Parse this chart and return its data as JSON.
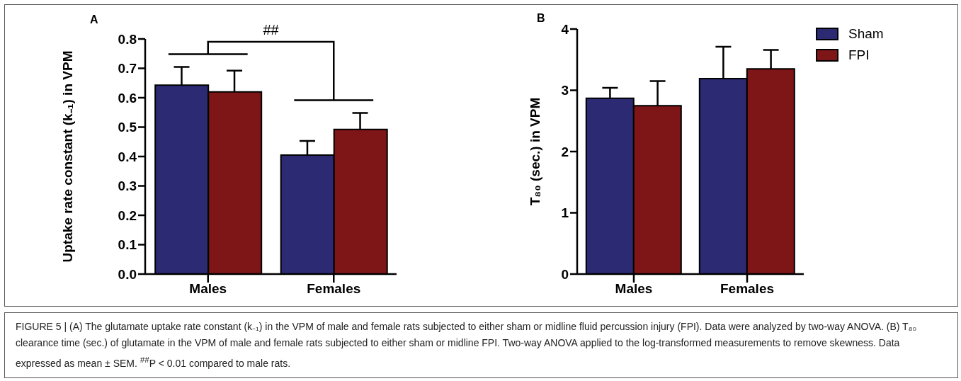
{
  "chart_data": [
    {
      "type": "bar",
      "title": "A",
      "ylabel": "Uptake rate constant  (k₋₁) in VPM",
      "categories": [
        "Males",
        "Females"
      ],
      "series": [
        {
          "color": "#2b2a72",
          "values": [
            0.643,
            0.405
          ],
          "errors": [
            [
              0.643,
              0.705
            ],
            [
              0.405,
              0.453
            ]
          ]
        },
        {
          "color": "#7e1517",
          "values": [
            0.62,
            0.492
          ],
          "errors": [
            [
              0.62,
              0.692
            ],
            [
              0.492,
              0.548
            ]
          ]
        }
      ],
      "ylim": [
        0,
        0.8
      ],
      "yticks": [
        {
          "value": 0,
          "label": "0.0"
        },
        0.1,
        0.2,
        0.3,
        0.4,
        0.5,
        0.6,
        0.7,
        0.8
      ],
      "legend": false,
      "annotations": [
        "##"
      ]
    },
    {
      "type": "bar",
      "title": "B",
      "ylabel": "T₈₀ (sec.) in VPM",
      "categories": [
        "Males",
        "Females"
      ],
      "series": [
        {
          "name": "Sham",
          "color": "#2b2a72",
          "values": [
            2.87,
            3.19
          ],
          "errors": [
            [
              2.87,
              3.04
            ],
            [
              3.19,
              3.71
            ]
          ]
        },
        {
          "name": "FPI",
          "color": "#7e1517",
          "values": [
            2.75,
            3.35
          ],
          "errors": [
            [
              2.75,
              3.15
            ],
            [
              3.35,
              3.66
            ]
          ]
        }
      ],
      "ylim": [
        0,
        4
      ],
      "yticks": [
        0,
        1,
        2,
        3,
        4
      ],
      "legend": "top right",
      "annotations": [
        "FIGURE 5 | (A) The glutamate uptake rate constant (k₋₁) in the VPM of male and female rats subjected to either sham or midline fluid percussion injury (FPI). Data were analyzed by two-way ANOVA. (B) T₈₀ clearance time (sec.) of glutamate in the VPM of male and female rats subjected to either sham or midline FPI. Two-way ANOVA applied to the log-transformed measurements to remove skewness. Data expressed as mean ± SEM. $^{##}$P < 0.01 compared to male rats."
      ]
    }
  ]
}
